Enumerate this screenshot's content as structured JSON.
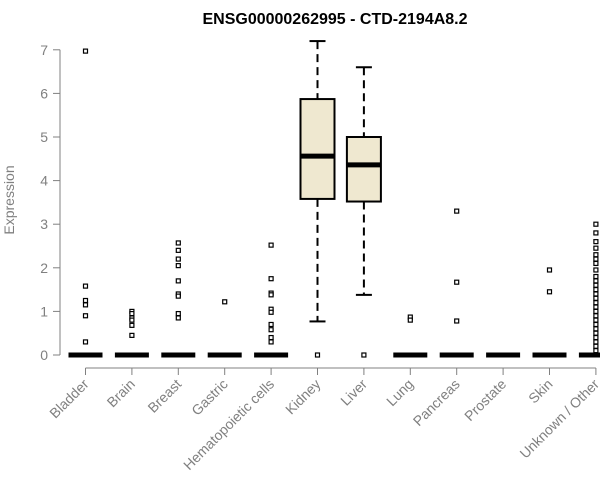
{
  "chart_data": {
    "type": "box",
    "title": "ENSG00000262995 - CTD-2194A8.2",
    "ylabel": "Expression",
    "xlabel": "",
    "ylim": [
      0,
      7.3
    ],
    "yticks": [
      0,
      1,
      2,
      3,
      4,
      5,
      6,
      7
    ],
    "categories": [
      "Bladder",
      "Brain",
      "Breast",
      "Gastric",
      "Hematopoietic cells",
      "Kidney",
      "Liver",
      "Lung",
      "Pancreas",
      "Prostate",
      "Skin",
      "Unknown / Other"
    ],
    "colors": {
      "box_fill": "#efe8d0",
      "stroke": "#000000",
      "axis": "#808080"
    },
    "series": [
      {
        "category": "Bladder",
        "min": 0,
        "q1": 0,
        "median": 0,
        "q3": 0,
        "max": 0,
        "outliers": [
          6.97,
          1.58,
          1.25,
          1.15,
          0.9,
          0.3
        ]
      },
      {
        "category": "Brain",
        "min": 0,
        "q1": 0,
        "median": 0,
        "q3": 0,
        "max": 0,
        "outliers": [
          1.0,
          0.95,
          0.85,
          0.8,
          0.68,
          0.45
        ]
      },
      {
        "category": "Breast",
        "min": 0,
        "q1": 0,
        "median": 0,
        "q3": 0,
        "max": 0,
        "outliers": [
          2.57,
          2.4,
          2.2,
          2.05,
          1.7,
          1.4,
          1.35,
          0.95,
          0.85
        ]
      },
      {
        "category": "Gastric",
        "min": 0,
        "q1": 0,
        "median": 0,
        "q3": 0,
        "max": 0,
        "outliers": [
          1.22
        ]
      },
      {
        "category": "Hematopoietic cells",
        "min": 0,
        "q1": 0,
        "median": 0,
        "q3": 0,
        "max": 0,
        "outliers": [
          2.52,
          1.75,
          1.42,
          1.38,
          1.05,
          0.98,
          0.7,
          0.58,
          0.4,
          0.3
        ]
      },
      {
        "category": "Kidney",
        "min": 0.77,
        "q1": 3.58,
        "median": 4.56,
        "q3": 5.87,
        "max": 7.2,
        "outliers": [
          0
        ]
      },
      {
        "category": "Liver",
        "min": 1.38,
        "q1": 3.52,
        "median": 4.36,
        "q3": 5.0,
        "max": 6.6,
        "outliers": [
          0
        ]
      },
      {
        "category": "Lung",
        "min": 0,
        "q1": 0,
        "median": 0,
        "q3": 0,
        "max": 0,
        "outliers": [
          0.87,
          0.8
        ]
      },
      {
        "category": "Pancreas",
        "min": 0,
        "q1": 0,
        "median": 0,
        "q3": 0,
        "max": 0,
        "outliers": [
          3.3,
          1.67,
          0.78
        ]
      },
      {
        "category": "Prostate",
        "min": 0,
        "q1": 0,
        "median": 0,
        "q3": 0,
        "max": 0,
        "outliers": []
      },
      {
        "category": "Skin",
        "min": 0,
        "q1": 0,
        "median": 0,
        "q3": 0,
        "max": 0,
        "outliers": [
          1.95,
          1.45
        ]
      },
      {
        "category": "Unknown / Other",
        "min": 0,
        "q1": 0,
        "median": 0,
        "q3": 0,
        "max": 0,
        "outliers": [
          3.0,
          2.8,
          2.6,
          2.45,
          2.3,
          2.2,
          2.1,
          1.95,
          1.8,
          1.7,
          1.6,
          1.5,
          1.4,
          1.3,
          1.2,
          1.1,
          1.0,
          0.9,
          0.8,
          0.7,
          0.6,
          0.5,
          0.4,
          0.3,
          0.2,
          0.1
        ]
      }
    ]
  }
}
